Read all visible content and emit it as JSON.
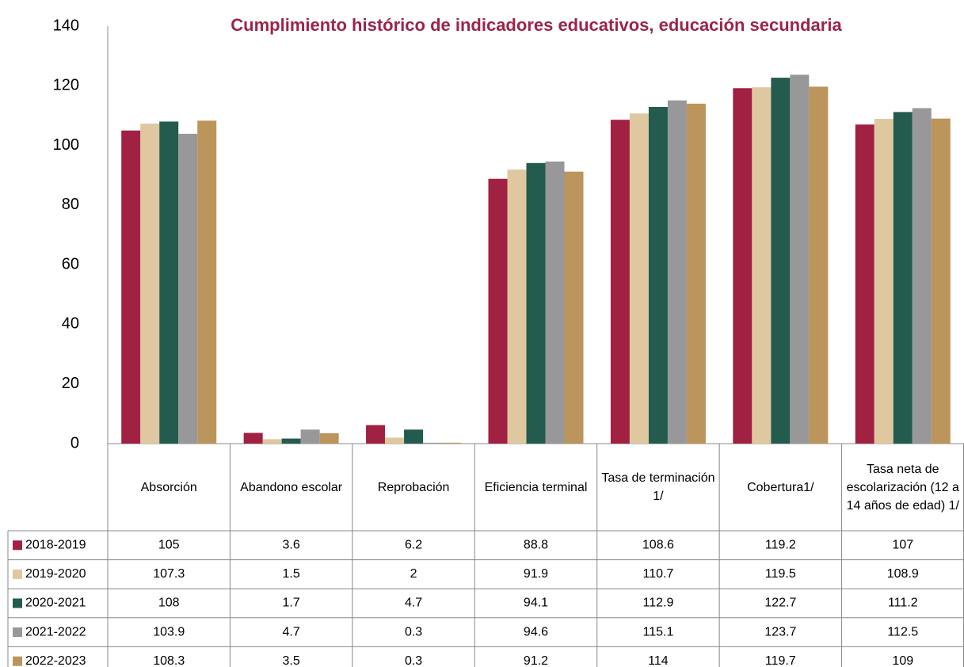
{
  "chart_data": {
    "type": "bar",
    "title": "Cumplimiento histórico de indicadores educativos, educación secundaria",
    "categories": [
      "Absorción",
      "Abandono escolar",
      "Reprobación",
      "Eficiencia terminal",
      "Tasa de terminación 1/",
      "Cobertura1/",
      "Tasa neta de escolarización (12 a 14 años de edad) 1/"
    ],
    "series": [
      {
        "name": "2018-2019",
        "color": "#a02142",
        "values": [
          105,
          3.6,
          6.2,
          88.8,
          108.6,
          119.2,
          107
        ]
      },
      {
        "name": "2019-2020",
        "color": "#dfc8a0",
        "values": [
          107.3,
          1.5,
          2,
          91.9,
          110.7,
          119.5,
          108.9
        ]
      },
      {
        "name": "2020-2021",
        "color": "#235b4e",
        "values": [
          108,
          1.7,
          4.7,
          94.1,
          112.9,
          122.7,
          111.2
        ]
      },
      {
        "name": "2021-2022",
        "color": "#98989a",
        "values": [
          103.9,
          4.7,
          0.3,
          94.6,
          115.1,
          123.7,
          112.5
        ]
      },
      {
        "name": "2022-2023",
        "color": "#bc955c",
        "values": [
          108.3,
          3.5,
          0.3,
          91.2,
          114,
          119.7,
          109
        ]
      }
    ],
    "ylim": [
      0,
      140
    ],
    "yticks": [
      0,
      20,
      40,
      60,
      80,
      100,
      120,
      140
    ],
    "grid": false,
    "legend": "table"
  }
}
